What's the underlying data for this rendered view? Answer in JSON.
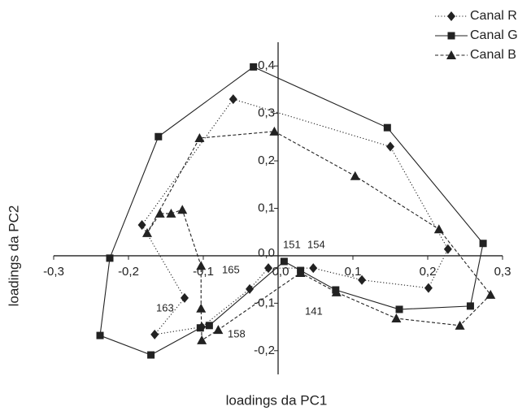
{
  "chart_data": {
    "type": "line",
    "xlabel": "loadings da PC1",
    "ylabel": "loadings da PC2",
    "xlim": [
      -0.3,
      0.3
    ],
    "ylim": [
      -0.25,
      0.45
    ],
    "xticks": [
      {
        "value": -0.3,
        "label": "-0,3"
      },
      {
        "value": -0.2,
        "label": "-0,2"
      },
      {
        "value": -0.1,
        "label": "-0,1"
      },
      {
        "value": 0,
        "label": "0,0"
      },
      {
        "value": 0.1,
        "label": "0,1"
      },
      {
        "value": 0.2,
        "label": "0,2"
      },
      {
        "value": 0.3,
        "label": "0,3"
      }
    ],
    "yticks": [
      {
        "value": -0.2,
        "label": "-0,2"
      },
      {
        "value": -0.1,
        "label": "-0,1"
      },
      {
        "value": 0,
        "label": "0,0"
      },
      {
        "value": 0.1,
        "label": "0,1"
      },
      {
        "value": 0.2,
        "label": "0,2"
      },
      {
        "value": 0.3,
        "label": "0,3"
      },
      {
        "value": 0.4,
        "label": "0,4"
      }
    ],
    "legend": "upper right",
    "annotations": [
      "151",
      "154",
      "165",
      "163",
      "141",
      "158"
    ],
    "series": [
      {
        "name": "Canal R",
        "color": "#222222",
        "marker": "diamond",
        "linestyle": "dotted",
        "x": [
          -0.06,
          0.15,
          0.227,
          0.201,
          0.112,
          0.047,
          -0.013,
          -0.038,
          -0.102,
          -0.165,
          -0.125,
          -0.182
        ],
        "values": [
          0.33,
          0.23,
          0.014,
          -0.068,
          -0.051,
          -0.026,
          -0.026,
          -0.07,
          -0.15,
          -0.166,
          -0.089,
          0.065
        ]
      },
      {
        "name": "Canal G",
        "color": "#222222",
        "marker": "square",
        "linestyle": "solid",
        "x": [
          -0.033,
          0.146,
          0.274,
          0.257,
          0.162,
          0.077,
          0.03,
          0.008,
          -0.092,
          -0.104,
          -0.17,
          -0.238,
          -0.225,
          -0.16
        ],
        "values": [
          0.398,
          0.27,
          0.026,
          -0.106,
          -0.113,
          -0.072,
          -0.031,
          -0.012,
          -0.147,
          -0.152,
          -0.209,
          -0.168,
          -0.005,
          0.251
        ]
      },
      {
        "name": "Canal B",
        "color": "#222222",
        "marker": "triangle",
        "linestyle": "dashed",
        "x": [
          -0.005,
          0.103,
          0.215,
          0.284,
          0.243,
          0.158,
          0.078,
          0.03,
          -0.08,
          -0.102,
          -0.103,
          -0.103,
          -0.128,
          -0.143,
          -0.158,
          -0.175,
          -0.105
        ],
        "values": [
          0.262,
          0.168,
          0.056,
          -0.082,
          -0.147,
          -0.132,
          -0.077,
          -0.036,
          -0.156,
          -0.178,
          -0.111,
          -0.021,
          0.097,
          0.089,
          0.089,
          0.048,
          0.248
        ]
      }
    ]
  }
}
